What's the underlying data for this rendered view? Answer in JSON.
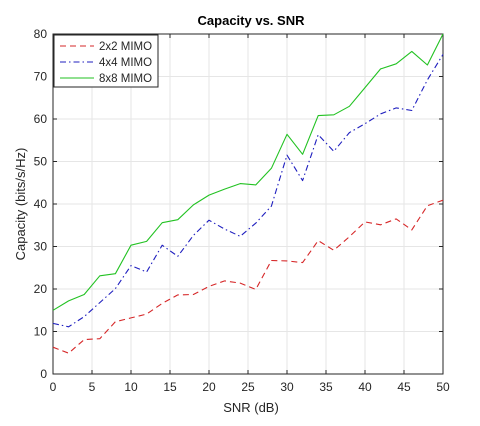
{
  "chart_data": {
    "type": "line",
    "title": "Capacity vs. SNR",
    "xlabel": "SNR (dB)",
    "ylabel": "Capacity (bits/s/Hz)",
    "xlim": [
      0,
      50
    ],
    "ylim": [
      0,
      80
    ],
    "xticks": [
      0,
      5,
      10,
      15,
      20,
      25,
      30,
      35,
      40,
      45,
      50
    ],
    "yticks": [
      0,
      10,
      20,
      30,
      40,
      50,
      60,
      70,
      80
    ],
    "grid": true,
    "legend_position": "top-left",
    "x": [
      0,
      2,
      4,
      6,
      8,
      10,
      12,
      14,
      16,
      18,
      20,
      22,
      24,
      26,
      28,
      30,
      32,
      34,
      36,
      38,
      40,
      42,
      44,
      46,
      48,
      50
    ],
    "series": [
      {
        "name": "2x2 MIMO",
        "color": "#d62728",
        "style": "dashed",
        "values": [
          6.3,
          4.9,
          8.1,
          8.3,
          12.3,
          13.2,
          14.1,
          16.6,
          18.6,
          18.7,
          20.6,
          21.9,
          21.4,
          19.9,
          26.7,
          26.6,
          26.2,
          31.4,
          29.1,
          32.3,
          35.8,
          35.1,
          36.5,
          33.9,
          39.6,
          40.9
        ]
      },
      {
        "name": "4x4 MIMO",
        "color": "#1f1fbf",
        "style": "dashdot",
        "values": [
          11.9,
          11.1,
          13.5,
          16.8,
          20.1,
          25.5,
          24.0,
          30.3,
          27.7,
          32.6,
          36.2,
          34.1,
          32.4,
          35.5,
          39.5,
          51.5,
          45.5,
          56.3,
          52.4,
          56.8,
          58.9,
          61.2,
          62.6,
          62.0,
          69.2,
          75.2
        ]
      },
      {
        "name": "8x8 MIMO",
        "color": "#22c222",
        "style": "solid",
        "values": [
          15.0,
          17.2,
          18.7,
          23.1,
          23.6,
          30.3,
          31.2,
          35.6,
          36.3,
          39.8,
          42.1,
          43.5,
          44.8,
          44.5,
          48.4,
          56.4,
          51.7,
          60.8,
          61.0,
          63.0,
          67.4,
          71.8,
          73.0,
          75.9,
          72.7,
          80.0
        ]
      }
    ]
  }
}
